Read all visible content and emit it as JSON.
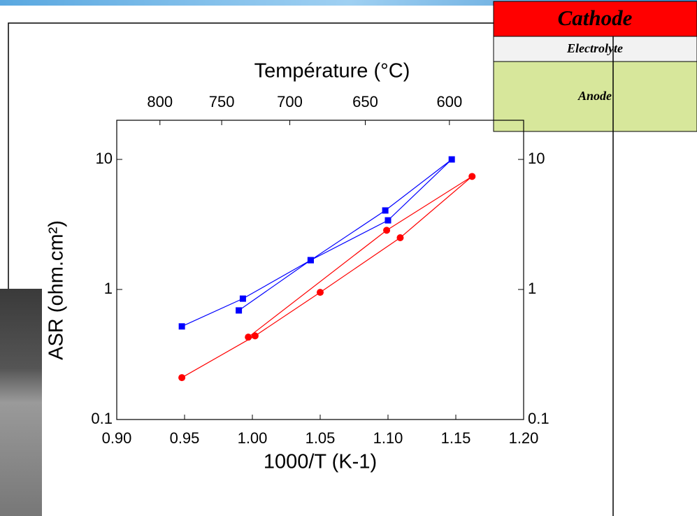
{
  "slide": {
    "layers": [
      "Cathode",
      "Electrolyte",
      "Anode"
    ]
  },
  "chart_data": {
    "type": "line",
    "xlabel": "1000/T (K-1)",
    "ylabel": "ASR (ohm.cm²)",
    "x2label": "Température (°C)",
    "xlim": [
      0.9,
      1.2
    ],
    "xticks": [
      {
        "value": 0.9,
        "label": "0.90"
      },
      0.95,
      {
        "value": 1.0,
        "label": "1.00"
      },
      1.05,
      {
        "value": 1.1,
        "label": "1.10"
      },
      1.15,
      {
        "value": 1.2,
        "label": "1.20"
      }
    ],
    "x2ticks": [
      800,
      750,
      700,
      650,
      600
    ],
    "ylim": [
      0.1,
      20
    ],
    "yticks": [
      0.1,
      1,
      10
    ],
    "log_y": true,
    "series": [
      {
        "color": "#0000ff",
        "marker": "square",
        "x": [
          0.948,
          0.993,
          1.043,
          1.098,
          1.147,
          1.1,
          1.043,
          0.99
        ],
        "values": [
          0.52,
          0.85,
          1.68,
          4.05,
          10,
          3.4,
          1.68,
          0.69
        ]
      },
      {
        "color": "#ff0000",
        "marker": "circle",
        "x": [
          0.948,
          1.002,
          1.05,
          1.109,
          1.162,
          1.099,
          0.997
        ],
        "values": [
          0.21,
          0.44,
          0.95,
          2.5,
          7.4,
          2.85,
          0.43
        ]
      }
    ]
  }
}
